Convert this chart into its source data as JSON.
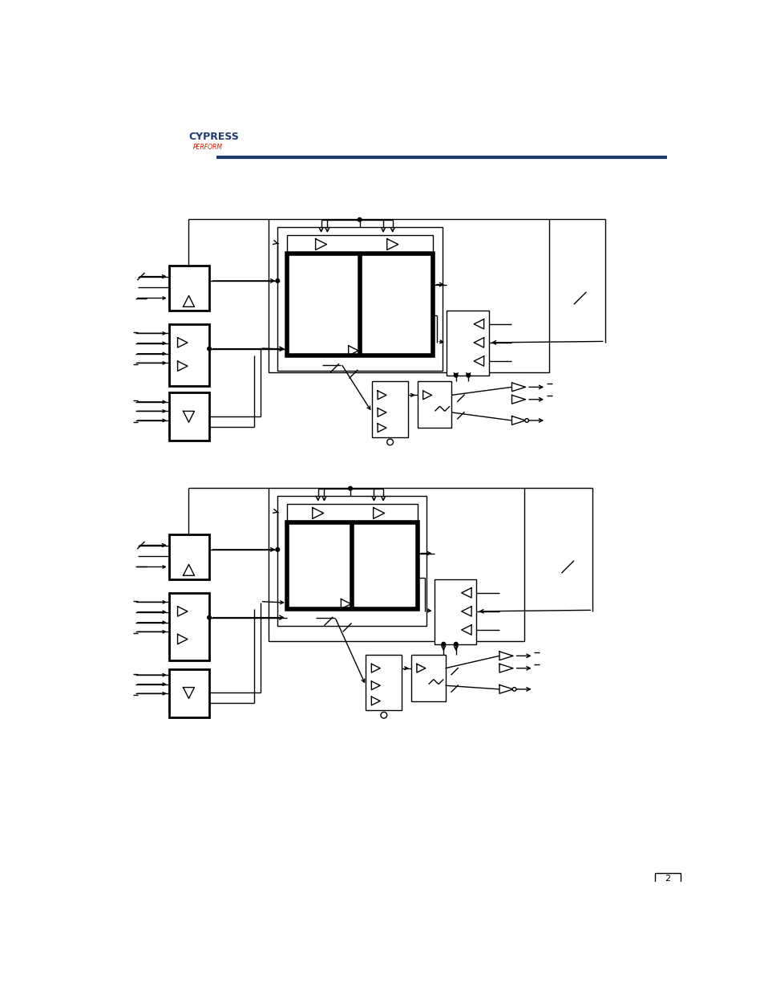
{
  "bg_color": "#ffffff",
  "lc": "#000000",
  "header_blue": "#1f3a6e",
  "logo_cypress_color": "#1f3a6e",
  "logo_perform_color": "#cc2200",
  "page_num": "2",
  "fig_width": 9.54,
  "fig_height": 12.35,
  "dpi": 100,
  "IH": 1235,
  "IW": 954
}
